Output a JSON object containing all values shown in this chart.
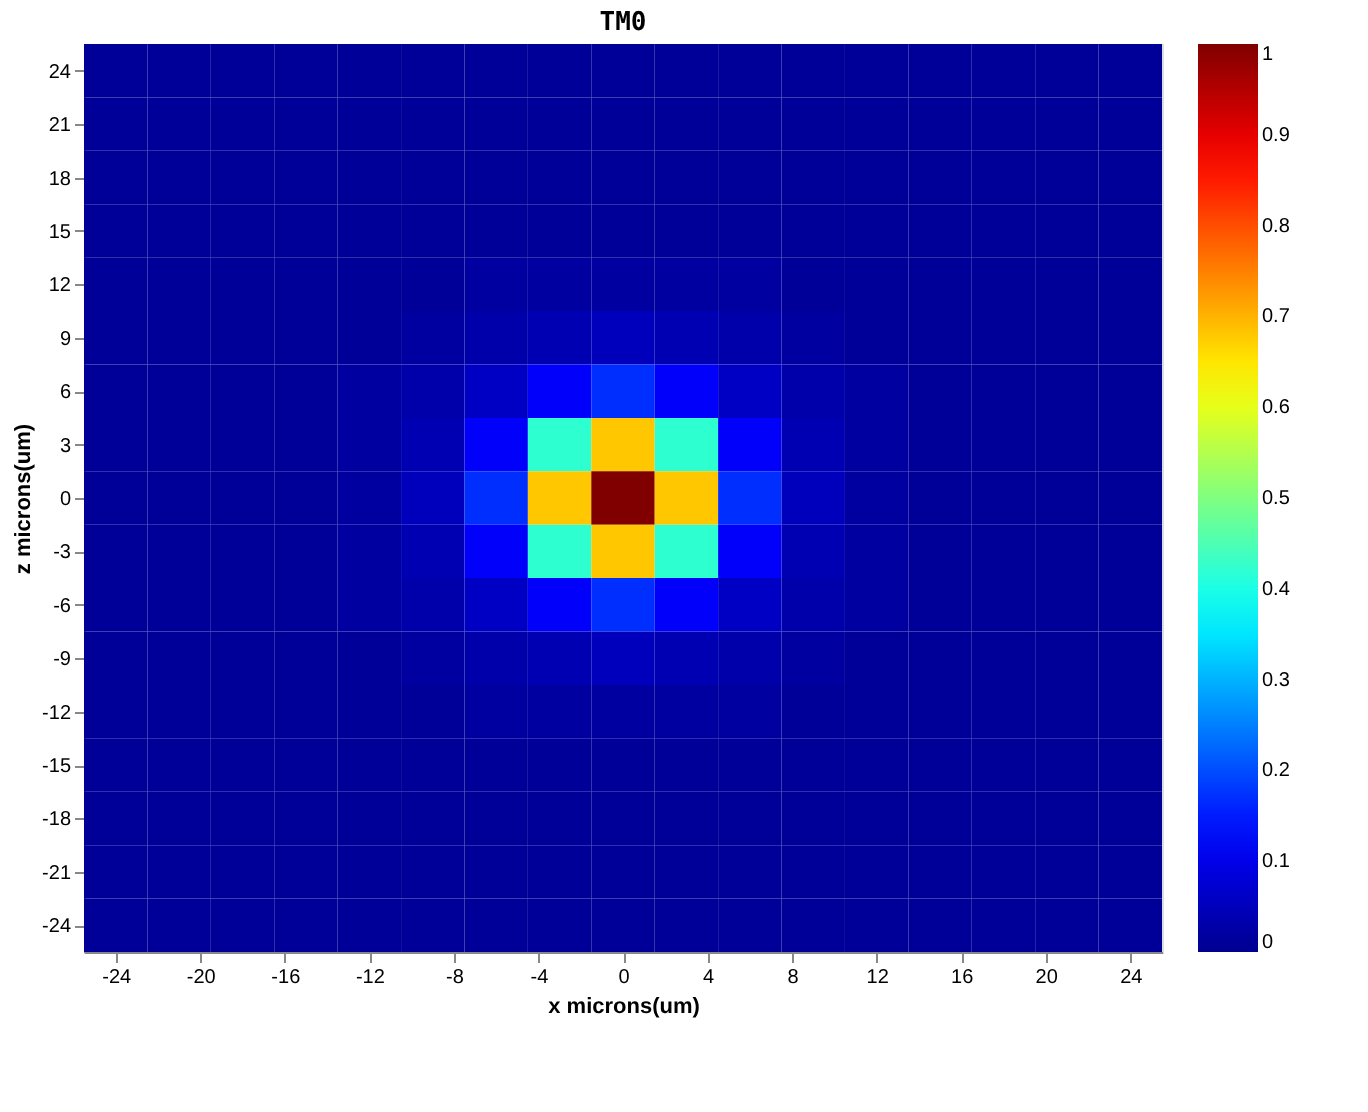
{
  "chart_data": {
    "type": "heatmap",
    "title": "TM0",
    "xlabel": "x microns(um)",
    "ylabel": "z microns(um)",
    "x": [
      -24,
      -21,
      -18,
      -15,
      -12,
      -9,
      -6,
      -3,
      0,
      3,
      6,
      9,
      12,
      15,
      18,
      21,
      24
    ],
    "y": [
      24,
      21,
      18,
      15,
      12,
      9,
      6,
      3,
      0,
      -3,
      -6,
      -9,
      -12,
      -15,
      -18,
      -21,
      -24
    ],
    "cells": [
      [
        0.01,
        0.01,
        0.01,
        0.01,
        0.01,
        0.01,
        0.01,
        0.01,
        0.01,
        0.01,
        0.01,
        0.01,
        0.01,
        0.01,
        0.01,
        0.01,
        0.01
      ],
      [
        0.01,
        0.01,
        0.01,
        0.01,
        0.01,
        0.01,
        0.01,
        0.01,
        0.01,
        0.01,
        0.01,
        0.01,
        0.01,
        0.01,
        0.01,
        0.01,
        0.01
      ],
      [
        0.01,
        0.01,
        0.01,
        0.01,
        0.01,
        0.01,
        0.01,
        0.01,
        0.01,
        0.01,
        0.01,
        0.01,
        0.01,
        0.01,
        0.01,
        0.01,
        0.01
      ],
      [
        0.01,
        0.01,
        0.01,
        0.01,
        0.01,
        0.01,
        0.01,
        0.01,
        0.01,
        0.01,
        0.01,
        0.01,
        0.01,
        0.01,
        0.01,
        0.01,
        0.01
      ],
      [
        0.01,
        0.01,
        0.01,
        0.01,
        0.01,
        0.01,
        0.02,
        0.02,
        0.02,
        0.02,
        0.02,
        0.01,
        0.01,
        0.01,
        0.01,
        0.01,
        0.01
      ],
      [
        0.01,
        0.01,
        0.01,
        0.01,
        0.01,
        0.02,
        0.03,
        0.04,
        0.05,
        0.04,
        0.03,
        0.02,
        0.01,
        0.01,
        0.01,
        0.01,
        0.01
      ],
      [
        0.01,
        0.01,
        0.01,
        0.01,
        0.02,
        0.03,
        0.06,
        0.12,
        0.17,
        0.12,
        0.06,
        0.03,
        0.02,
        0.01,
        0.01,
        0.01,
        0.01
      ],
      [
        0.01,
        0.01,
        0.01,
        0.01,
        0.02,
        0.04,
        0.12,
        0.42,
        0.68,
        0.42,
        0.12,
        0.04,
        0.02,
        0.01,
        0.01,
        0.01,
        0.01
      ],
      [
        0.01,
        0.01,
        0.01,
        0.01,
        0.02,
        0.05,
        0.17,
        0.68,
        1,
        0.68,
        0.17,
        0.05,
        0.02,
        0.01,
        0.01,
        0.01,
        0.01
      ],
      [
        0.01,
        0.01,
        0.01,
        0.01,
        0.02,
        0.04,
        0.12,
        0.42,
        0.68,
        0.42,
        0.12,
        0.04,
        0.02,
        0.01,
        0.01,
        0.01,
        0.01
      ],
      [
        0.01,
        0.01,
        0.01,
        0.01,
        0.02,
        0.03,
        0.06,
        0.12,
        0.17,
        0.12,
        0.06,
        0.03,
        0.02,
        0.01,
        0.01,
        0.01,
        0.01
      ],
      [
        0.01,
        0.01,
        0.01,
        0.01,
        0.01,
        0.02,
        0.03,
        0.04,
        0.05,
        0.04,
        0.03,
        0.02,
        0.01,
        0.01,
        0.01,
        0.01,
        0.01
      ],
      [
        0.01,
        0.01,
        0.01,
        0.01,
        0.01,
        0.01,
        0.02,
        0.02,
        0.02,
        0.02,
        0.02,
        0.01,
        0.01,
        0.01,
        0.01,
        0.01,
        0.01
      ],
      [
        0.01,
        0.01,
        0.01,
        0.01,
        0.01,
        0.01,
        0.01,
        0.01,
        0.01,
        0.01,
        0.01,
        0.01,
        0.01,
        0.01,
        0.01,
        0.01,
        0.01
      ],
      [
        0.01,
        0.01,
        0.01,
        0.01,
        0.01,
        0.01,
        0.01,
        0.01,
        0.01,
        0.01,
        0.01,
        0.01,
        0.01,
        0.01,
        0.01,
        0.01,
        0.01
      ],
      [
        0.01,
        0.01,
        0.01,
        0.01,
        0.01,
        0.01,
        0.01,
        0.01,
        0.01,
        0.01,
        0.01,
        0.01,
        0.01,
        0.01,
        0.01,
        0.01,
        0.01
      ],
      [
        0.01,
        0.01,
        0.01,
        0.01,
        0.01,
        0.01,
        0.01,
        0.01,
        0.01,
        0.01,
        0.01,
        0.01,
        0.01,
        0.01,
        0.01,
        0.01,
        0.01
      ]
    ],
    "xlim": [
      -25.5,
      25.5
    ],
    "xticks": [
      -24,
      -20,
      -16,
      -12,
      -8,
      -4,
      0,
      4,
      8,
      12,
      16,
      20,
      24
    ],
    "ylim": [
      -25.5,
      25.5
    ],
    "yticks": [
      -24,
      -21,
      -18,
      -15,
      -12,
      -9,
      -6,
      -3,
      0,
      3,
      6,
      9,
      12,
      15,
      18,
      21,
      24
    ],
    "clim": [
      0,
      1
    ],
    "cticks": [
      0,
      0.1,
      0.2,
      0.3,
      0.4,
      0.5,
      0.6,
      0.7,
      0.8,
      0.9,
      1
    ],
    "grid": false
  }
}
